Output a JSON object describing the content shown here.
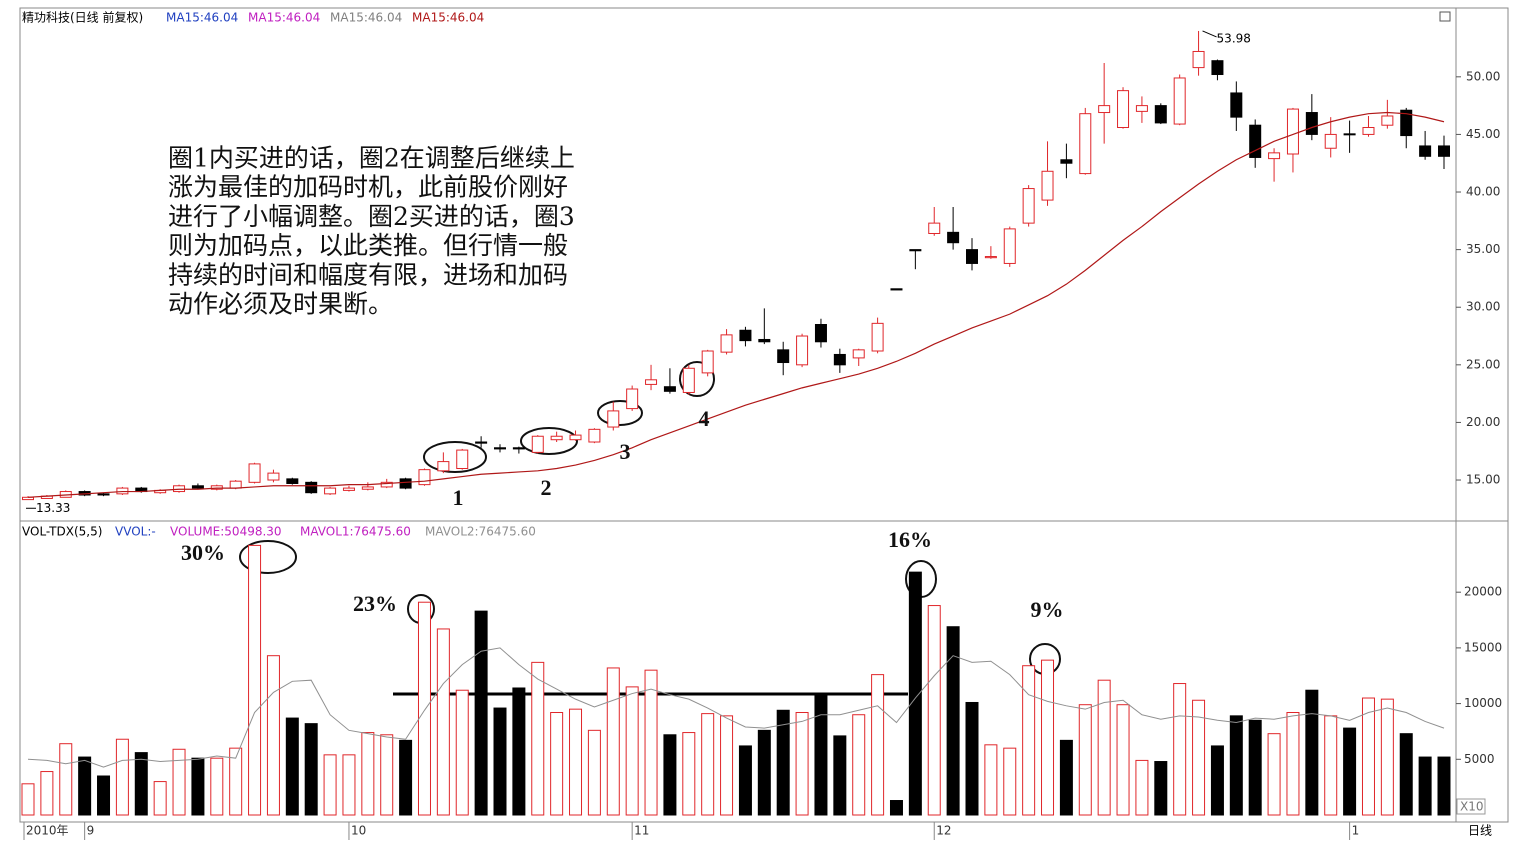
{
  "chart_data": [
    {
      "type": "candlestick",
      "title": "精功科技(日线 前复权)",
      "header_items": [
        {
          "text": "MA15:46.04",
          "color": "#2040c0"
        },
        {
          "text": "MA15:46.04",
          "color": "#c020c0"
        },
        {
          "text": "MA15:46.04",
          "color": "#808080"
        }
      ],
      "up_color": "#e0262a",
      "down_color": "#000000",
      "open": [
        13.3,
        13.4,
        13.5,
        14.0,
        13.8,
        13.8,
        14.3,
        13.9,
        14.0,
        14.5,
        14.2,
        14.3,
        14.8,
        15.0,
        15.1,
        14.8,
        13.8,
        14.1,
        14.2,
        14.4,
        15.1,
        14.6,
        15.8,
        16.0,
        18.3,
        17.8,
        17.8,
        17.4,
        18.5,
        18.5,
        18.3,
        19.6,
        21.2,
        23.3,
        23.1,
        22.6,
        24.3,
        26.1,
        28.0,
        27.2,
        26.3,
        25.0,
        28.5,
        25.9,
        25.6,
        26.2,
        31.6,
        35.0,
        36.4,
        36.5,
        35.0,
        34.3,
        33.8,
        37.3,
        39.3,
        42.8,
        41.6,
        46.9,
        45.6,
        47.0,
        47.5,
        45.9,
        50.8,
        51.4,
        48.6,
        45.8,
        42.9,
        43.3,
        46.9,
        43.8,
        45.05,
        45.0,
        45.8,
        47.1,
        44.0,
        44.0
      ],
      "high": [
        13.6,
        13.7,
        14.1,
        14.1,
        13.9,
        14.4,
        14.4,
        14.2,
        14.6,
        14.7,
        14.6,
        15.0,
        16.5,
        15.9,
        15.2,
        14.9,
        14.4,
        14.5,
        14.8,
        15.1,
        15.2,
        16.0,
        17.4,
        17.7,
        18.8,
        18.1,
        17.9,
        18.9,
        19.2,
        19.3,
        19.5,
        21.8,
        23.2,
        25.0,
        24.7,
        25.0,
        26.3,
        28.1,
        28.3,
        29.9,
        27.0,
        27.7,
        29.0,
        26.4,
        26.4,
        29.1,
        31.6,
        35.0,
        38.7,
        38.7,
        36.0,
        35.3,
        37.0,
        40.6,
        44.4,
        44.2,
        47.3,
        51.2,
        49.1,
        48.3,
        47.7,
        50.2,
        53.98,
        51.5,
        49.6,
        46.3,
        43.8,
        47.3,
        48.5,
        46.5,
        46.2,
        46.6,
        48.0,
        47.3,
        45.3,
        44.9
      ],
      "low": [
        13.33,
        13.4,
        13.5,
        13.6,
        13.6,
        13.7,
        13.9,
        13.8,
        13.9,
        14.2,
        14.1,
        14.2,
        14.7,
        14.8,
        14.6,
        13.8,
        13.7,
        14.0,
        14.1,
        14.3,
        14.2,
        14.5,
        15.6,
        15.9,
        17.8,
        17.4,
        17.3,
        17.3,
        18.3,
        18.4,
        18.2,
        19.3,
        21.0,
        22.8,
        22.5,
        22.4,
        24.0,
        25.9,
        26.6,
        26.8,
        24.1,
        24.8,
        26.5,
        24.3,
        24.9,
        26.0,
        31.5,
        33.3,
        36.2,
        35.0,
        33.2,
        34.2,
        33.5,
        37.0,
        38.8,
        41.2,
        41.5,
        44.2,
        45.5,
        46.0,
        45.9,
        45.8,
        50.1,
        49.7,
        45.3,
        42.1,
        40.9,
        41.7,
        44.5,
        43.0,
        43.4,
        44.8,
        45.5,
        43.8,
        42.8,
        42.0
      ],
      "close": [
        13.5,
        13.6,
        14.0,
        13.7,
        13.7,
        14.3,
        14.0,
        14.1,
        14.5,
        14.3,
        14.5,
        14.9,
        16.4,
        15.6,
        14.7,
        13.9,
        14.3,
        14.3,
        14.4,
        14.8,
        14.3,
        15.9,
        16.6,
        17.6,
        18.2,
        17.7,
        17.7,
        18.8,
        18.8,
        18.9,
        19.4,
        21.0,
        22.9,
        23.7,
        22.7,
        24.7,
        26.2,
        27.6,
        27.1,
        27.0,
        25.2,
        27.5,
        27.0,
        25.0,
        26.3,
        28.6,
        31.5,
        34.9,
        37.3,
        35.6,
        33.8,
        34.4,
        36.8,
        40.3,
        41.8,
        42.5,
        46.8,
        47.5,
        48.8,
        47.5,
        46.0,
        49.9,
        52.2,
        50.2,
        46.5,
        43.0,
        43.4,
        47.2,
        45.0,
        45.0,
        45.0,
        45.6,
        46.6,
        44.9,
        43.1,
        43.1
      ],
      "series": [
        {
          "name": "MA15:46.04",
          "color": "#b01818",
          "values": [
            13.5,
            13.6,
            13.7,
            13.8,
            13.9,
            14.0,
            14.0,
            14.1,
            14.2,
            14.2,
            14.3,
            14.3,
            14.4,
            14.5,
            14.5,
            14.5,
            14.5,
            14.6,
            14.6,
            14.7,
            14.8,
            14.9,
            15.1,
            15.3,
            15.5,
            15.6,
            15.7,
            15.8,
            16.0,
            16.3,
            16.7,
            17.2,
            17.8,
            18.5,
            19.1,
            19.7,
            20.3,
            20.9,
            21.5,
            22.0,
            22.5,
            23.0,
            23.4,
            23.8,
            24.2,
            24.7,
            25.3,
            26.0,
            26.8,
            27.5,
            28.2,
            28.8,
            29.4,
            30.2,
            31.0,
            32.0,
            33.2,
            34.5,
            35.8,
            37.0,
            38.3,
            39.5,
            40.7,
            41.8,
            42.8,
            43.6,
            44.4,
            45.0,
            45.6,
            46.1,
            46.5,
            46.8,
            46.9,
            46.8,
            46.5,
            46.1
          ]
        }
      ],
      "high_mark": 53.98,
      "low_mark": 13.33,
      "ylim": [
        11.53,
        55.8
      ],
      "yticks": [
        {
          "value": 15,
          "label": "15.00"
        },
        {
          "value": 20,
          "label": "20.00"
        },
        {
          "value": 25,
          "label": "25.00"
        },
        {
          "value": 30,
          "label": "30.00"
        },
        {
          "value": 35,
          "label": "35.00"
        },
        {
          "value": 40,
          "label": "40.00"
        },
        {
          "value": 45,
          "label": "45.00"
        },
        {
          "value": 50,
          "label": "50.00"
        }
      ],
      "annotation_lines": [
        "圈1内买进的话，圈2在调整后继续上",
        "涨为最佳的加码时机，此前股价刚好",
        "进行了小幅调整。圈2买进的话，圈3",
        "则为加码点，以此类推。但行情一般",
        "持续的时间和幅度有限，进场和加码",
        "动作必须及时果断。"
      ],
      "circle_labels": [
        "1",
        "2",
        "3",
        "4"
      ]
    },
    {
      "type": "bar",
      "title": "VOL-TDX(5,5)",
      "header_items": [
        {
          "text": "VVOL:-",
          "color": "#2040c0"
        },
        {
          "text": "VOLUME:50498.30",
          "color": "#c020c0"
        },
        {
          "text": "MAVOL1:76475.60",
          "color": "#c020c0"
        }
      ],
      "values": [
        2800,
        3900,
        6400,
        5200,
        3500,
        6800,
        5600,
        3000,
        5900,
        5100,
        5100,
        6000,
        24200,
        14300,
        8700,
        8200,
        5400,
        5400,
        7400,
        7200,
        6700,
        19100,
        16700,
        11200,
        18300,
        9600,
        11400,
        13700,
        9200,
        9500,
        7600,
        13200,
        11500,
        13000,
        7200,
        7400,
        9100,
        8900,
        6200,
        7600,
        9400,
        9200,
        10800,
        7100,
        9000,
        12600,
        1300,
        21800,
        18800,
        16900,
        10100,
        6300,
        6000,
        13400,
        13900,
        6700,
        9900,
        12100,
        9900,
        4900,
        4800,
        11800,
        10300,
        6200,
        8900,
        8500,
        7300,
        9200,
        11200,
        8900,
        7800,
        10500,
        10400,
        7300,
        5200,
        5200
      ],
      "series": [
        {
          "name": "MAVOL2:76475.60",
          "color": "#909090",
          "values": [
            5000,
            4900,
            4600,
            4900,
            4300,
            4900,
            5000,
            4800,
            4900,
            5000,
            5300,
            5100,
            9200,
            11000,
            12000,
            12100,
            9000,
            7600,
            7300,
            7000,
            6800,
            9400,
            11800,
            13500,
            14700,
            15000,
            13500,
            12200,
            11300,
            10400,
            9700,
            10300,
            10900,
            11300,
            10800,
            10400,
            9600,
            8700,
            7900,
            7800,
            8100,
            8400,
            9000,
            9000,
            9400,
            9800,
            8300,
            10500,
            12500,
            14300,
            13700,
            13800,
            12600,
            10800,
            10200,
            9800,
            9500,
            10100,
            10300,
            9000,
            8600,
            8900,
            8800,
            8500,
            8300,
            8700,
            8600,
            8900,
            9100,
            8900,
            8500,
            9200,
            9600,
            9200,
            8400,
            7800
          ]
        }
      ],
      "categories": [
        "2010年",
        null,
        null,
        "9",
        null,
        null,
        null,
        null,
        null,
        null,
        null,
        null,
        null,
        null,
        null,
        null,
        null,
        "10",
        null,
        null,
        null,
        null,
        null,
        null,
        null,
        null,
        null,
        null,
        null,
        null,
        null,
        null,
        "11",
        null,
        null,
        null,
        null,
        null,
        null,
        null,
        null,
        null,
        null,
        null,
        null,
        null,
        null,
        null,
        "12",
        null,
        null,
        null,
        null,
        null,
        null,
        null,
        null,
        null,
        null,
        null,
        null,
        null,
        null,
        null,
        null,
        null,
        null,
        null,
        null,
        null,
        "1",
        null,
        null,
        null,
        null,
        null
      ],
      "ylim": [
        0,
        26300
      ],
      "yticks": [
        5000,
        10000,
        15000,
        20000
      ],
      "unit_label": "X10",
      "period_label": "日线",
      "percent_labels": [
        "30%",
        "23%",
        "16%",
        "9%"
      ]
    }
  ]
}
